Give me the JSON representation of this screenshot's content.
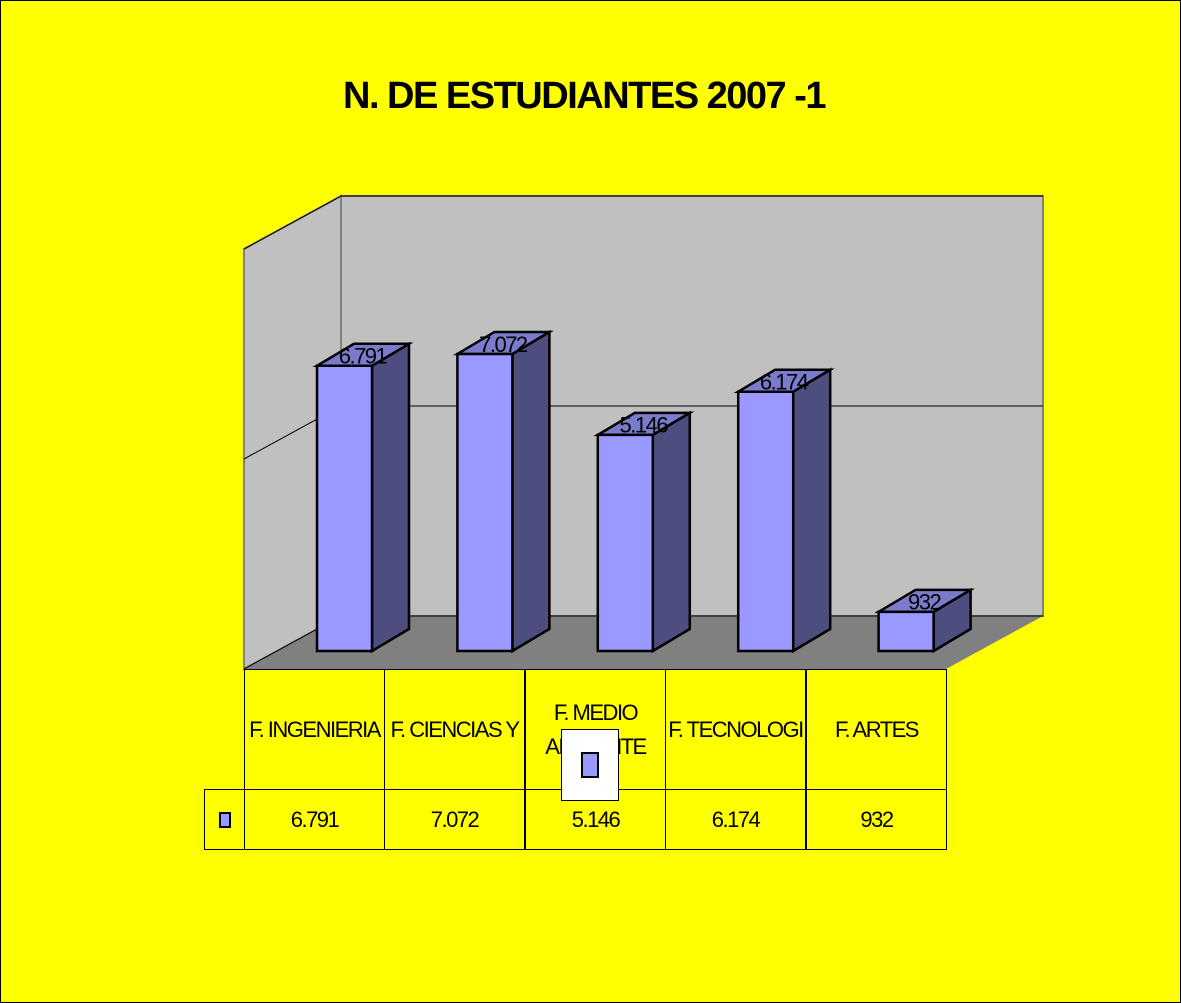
{
  "chart_data": {
    "type": "bar",
    "title": "N. DE ESTUDIANTES 2007 -1",
    "categories": [
      "F. INGENIERIA",
      "F. CIENCIAS Y",
      "F. MEDIO AMBIENTE",
      "F. TECNOLOGI",
      "F. ARTES"
    ],
    "values": [
      6791,
      7072,
      5146,
      6174,
      932
    ],
    "value_labels": [
      "6.791",
      "7.072",
      "5.146",
      "6.174",
      "932"
    ],
    "color": "#9999ff",
    "ylim": [
      0,
      10000
    ],
    "yticks": [
      0,
      5000,
      10000
    ],
    "grid": true
  }
}
